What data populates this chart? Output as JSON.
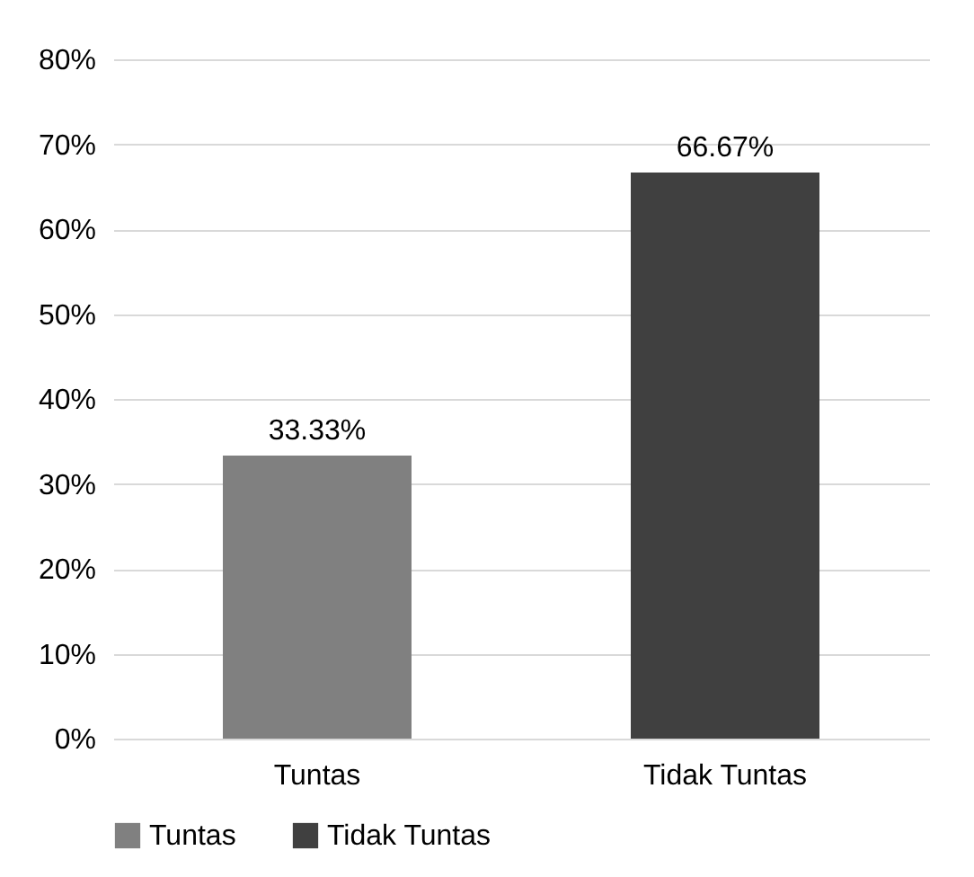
{
  "chart_data": {
    "type": "bar",
    "categories": [
      "Tuntas",
      "Tidak Tuntas"
    ],
    "series": [
      {
        "name": "Tuntas",
        "color": "#808080",
        "values": [
          33.33,
          null
        ],
        "value_labels": [
          "33.33%",
          null
        ]
      },
      {
        "name": "Tidak Tuntas",
        "color": "#404040",
        "values": [
          null,
          66.67
        ],
        "value_labels": [
          null,
          "66.67%"
        ]
      }
    ],
    "ylim": [
      0,
      80
    ],
    "yticks": [
      {
        "value": 0,
        "label": "0%"
      },
      {
        "value": 10,
        "label": "10%"
      },
      {
        "value": 20,
        "label": "20%"
      },
      {
        "value": 30,
        "label": "30%"
      },
      {
        "value": 40,
        "label": "40%"
      },
      {
        "value": 50,
        "label": "50%"
      },
      {
        "value": 60,
        "label": "60%"
      },
      {
        "value": 70,
        "label": "70%"
      },
      {
        "value": 80,
        "label": "80%"
      }
    ],
    "grid": "y",
    "legend": "bottom"
  }
}
